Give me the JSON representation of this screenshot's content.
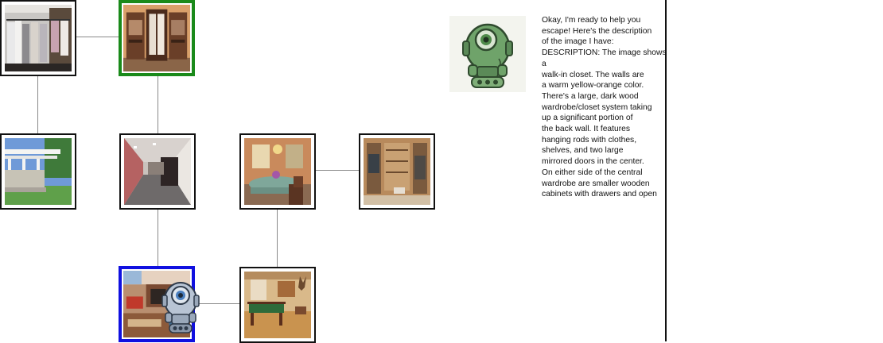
{
  "map": {
    "rooms": [
      {
        "id": "walk-in-closet-racks"
      },
      {
        "id": "walk-in-closet-wardrobe",
        "state": "target"
      },
      {
        "id": "patio-pergola"
      },
      {
        "id": "hallway"
      },
      {
        "id": "dining-room"
      },
      {
        "id": "closet-shelving"
      },
      {
        "id": "kitchen-playroom",
        "state": "current"
      },
      {
        "id": "billiard-room"
      }
    ],
    "player_icon": "robot-icon"
  },
  "chat": {
    "avatar_icon": "green-robot-icon",
    "message": "Okay, I'm ready to help you\nescape! Here's the description\nof the image I have:\nDESCRIPTION: The image shows a\nwalk-in closet. The walls are\na warm yellow-orange color.\nThere's a large, dark wood\nwardrobe/closet system taking\nup a significant portion of\nthe back wall. It features\nhanging rods with clothes,\nshelves, and two large\nmirrored doors in the center.\nOn either side of the central\nwardrobe are smaller wooden\ncabinets with drawers and open"
  },
  "colors": {
    "current_room_border": "#1010e0",
    "target_room_border": "#1a8a1a",
    "edge": "#8a8a8a"
  }
}
